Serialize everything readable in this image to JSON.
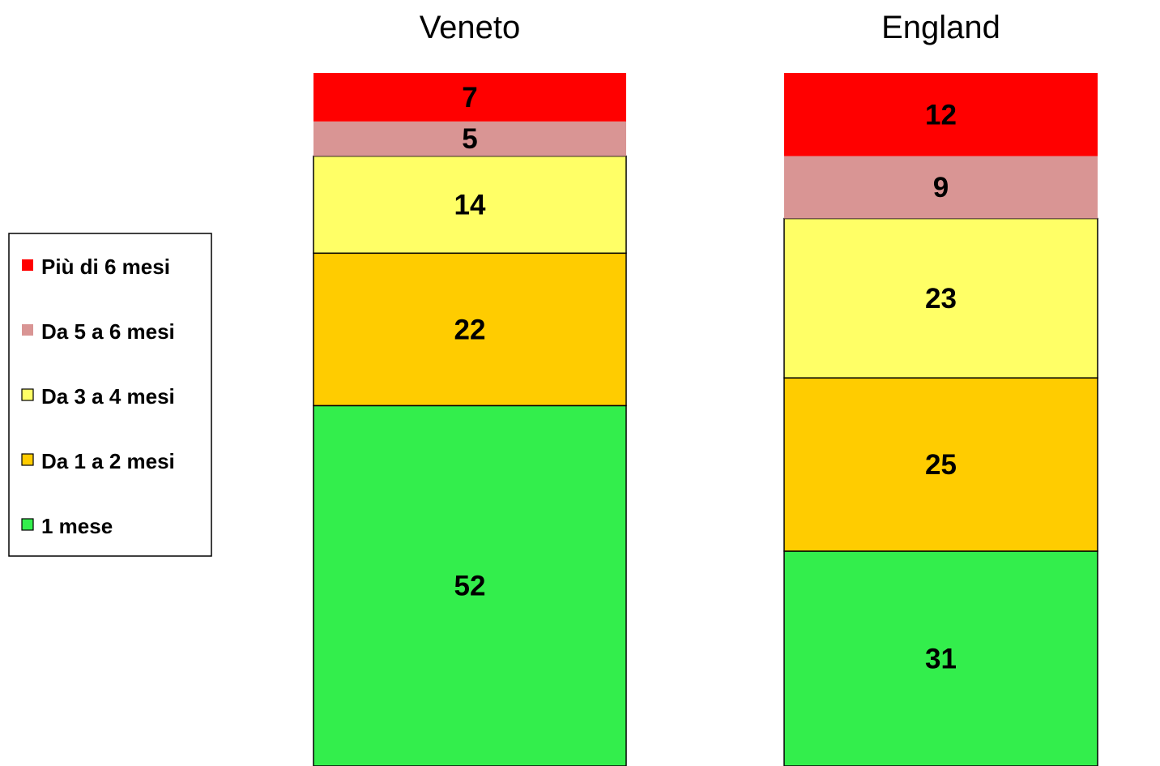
{
  "chart_data": {
    "type": "bar",
    "stacked": true,
    "percent_stacked": true,
    "categories": [
      "Veneto",
      "England"
    ],
    "series": [
      {
        "name": "1 mese",
        "values": [
          52,
          31
        ],
        "color": "#33ee4c"
      },
      {
        "name": "Da 1  a 2 mesi",
        "values": [
          22,
          25
        ],
        "color": "#ffcc00"
      },
      {
        "name": "Da 3  a 4 mesi",
        "values": [
          14,
          23
        ],
        "color": "#ffff66"
      },
      {
        "name": "Da 5  a 6 mesi",
        "values": [
          5,
          9
        ],
        "color": "#d99594"
      },
      {
        "name": "Più di 6 mesi",
        "values": [
          7,
          12
        ],
        "color": "#ff0000"
      }
    ],
    "data_labels": true,
    "legend_order": [
      "Più di 6 mesi",
      "Da 5  a 6 mesi",
      "Da 3  a 4 mesi",
      "Da 1  a 2 mesi",
      "1 mese"
    ],
    "legend_placement": "left",
    "axes_visible": false,
    "grid": false
  }
}
